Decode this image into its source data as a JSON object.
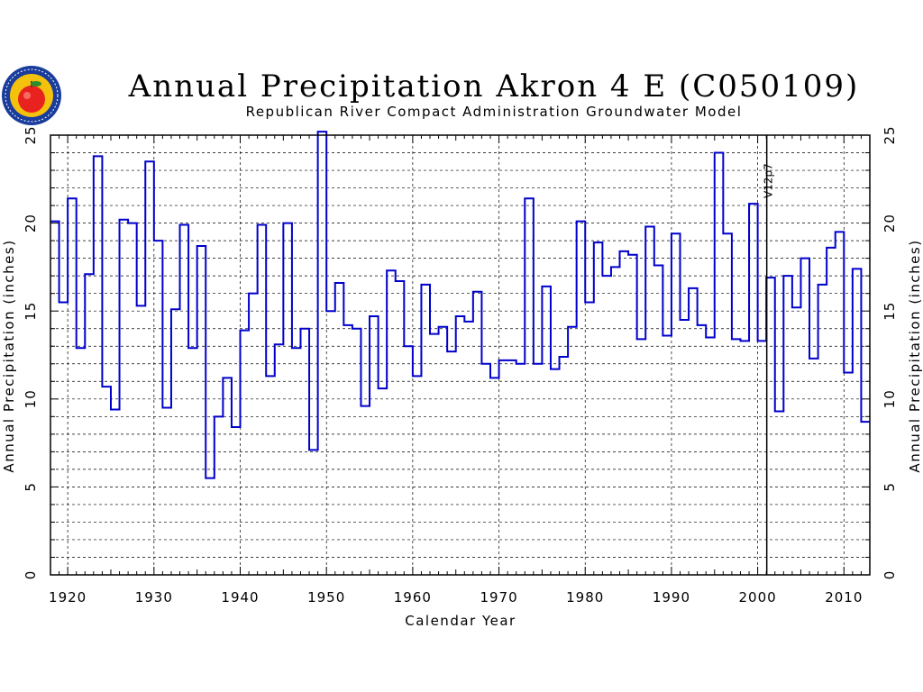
{
  "chart_data": {
    "type": "line",
    "step": true,
    "title": "Annual Precipitation Akron 4 E (C050109)",
    "subtitle": "Republican River Compact Administration Groundwater Model",
    "xlabel": "Calendar Year",
    "ylabel": "Annual Precipitation (inches)",
    "xlim": [
      1918,
      2013
    ],
    "ylim": [
      0,
      25
    ],
    "xticks": [
      1920,
      1930,
      1940,
      1950,
      1960,
      1970,
      1980,
      1990,
      2000,
      2010
    ],
    "yticks": [
      0,
      5,
      10,
      15,
      20,
      25
    ],
    "grid": true,
    "series_color": "#0000cc",
    "annotation": {
      "text": "V12p7",
      "x": 2001
    },
    "x": [
      1918,
      1919,
      1920,
      1921,
      1922,
      1923,
      1924,
      1925,
      1926,
      1927,
      1928,
      1929,
      1930,
      1931,
      1932,
      1933,
      1934,
      1935,
      1936,
      1937,
      1938,
      1939,
      1940,
      1941,
      1942,
      1943,
      1944,
      1945,
      1946,
      1947,
      1948,
      1949,
      1950,
      1951,
      1952,
      1953,
      1954,
      1955,
      1956,
      1957,
      1958,
      1959,
      1960,
      1961,
      1962,
      1963,
      1964,
      1965,
      1966,
      1967,
      1968,
      1969,
      1970,
      1971,
      1972,
      1973,
      1974,
      1975,
      1976,
      1977,
      1978,
      1979,
      1980,
      1981,
      1982,
      1983,
      1984,
      1985,
      1986,
      1987,
      1988,
      1989,
      1990,
      1991,
      1992,
      1993,
      1994,
      1995,
      1996,
      1997,
      1998,
      1999,
      2000,
      2001,
      2002,
      2003,
      2004,
      2005,
      2006,
      2007,
      2008,
      2009,
      2010,
      2011,
      2012
    ],
    "values": [
      20.1,
      15.5,
      21.4,
      12.9,
      17.1,
      23.8,
      10.7,
      9.4,
      20.2,
      20.0,
      15.3,
      23.5,
      19.0,
      9.5,
      15.1,
      19.9,
      12.9,
      18.7,
      5.5,
      9.0,
      11.2,
      8.4,
      13.9,
      16.0,
      19.9,
      11.3,
      13.1,
      20.0,
      12.9,
      14.0,
      7.1,
      25.2,
      15.0,
      16.6,
      14.2,
      14.0,
      9.6,
      14.7,
      10.6,
      17.3,
      16.7,
      13.0,
      11.3,
      16.5,
      13.7,
      14.1,
      12.7,
      14.7,
      14.4,
      16.1,
      12.0,
      11.2,
      12.2,
      12.2,
      12.0,
      21.4,
      12.0,
      16.4,
      11.7,
      12.4,
      14.1,
      20.1,
      15.5,
      18.9,
      17.0,
      17.5,
      18.4,
      18.2,
      13.4,
      19.8,
      17.6,
      13.6,
      19.4,
      14.5,
      16.3,
      14.2,
      13.5,
      24.0,
      19.4,
      13.4,
      13.3,
      21.1,
      13.3,
      16.9,
      9.3,
      17.0,
      15.2,
      18.0,
      12.3,
      16.5,
      18.6,
      19.5,
      11.5,
      17.4,
      8.7
    ]
  },
  "logo": {
    "name": "apple-seal-logo",
    "colors": [
      "#1a3c9c",
      "#f4c20d",
      "#e8231f",
      "#2e8b2e"
    ]
  }
}
